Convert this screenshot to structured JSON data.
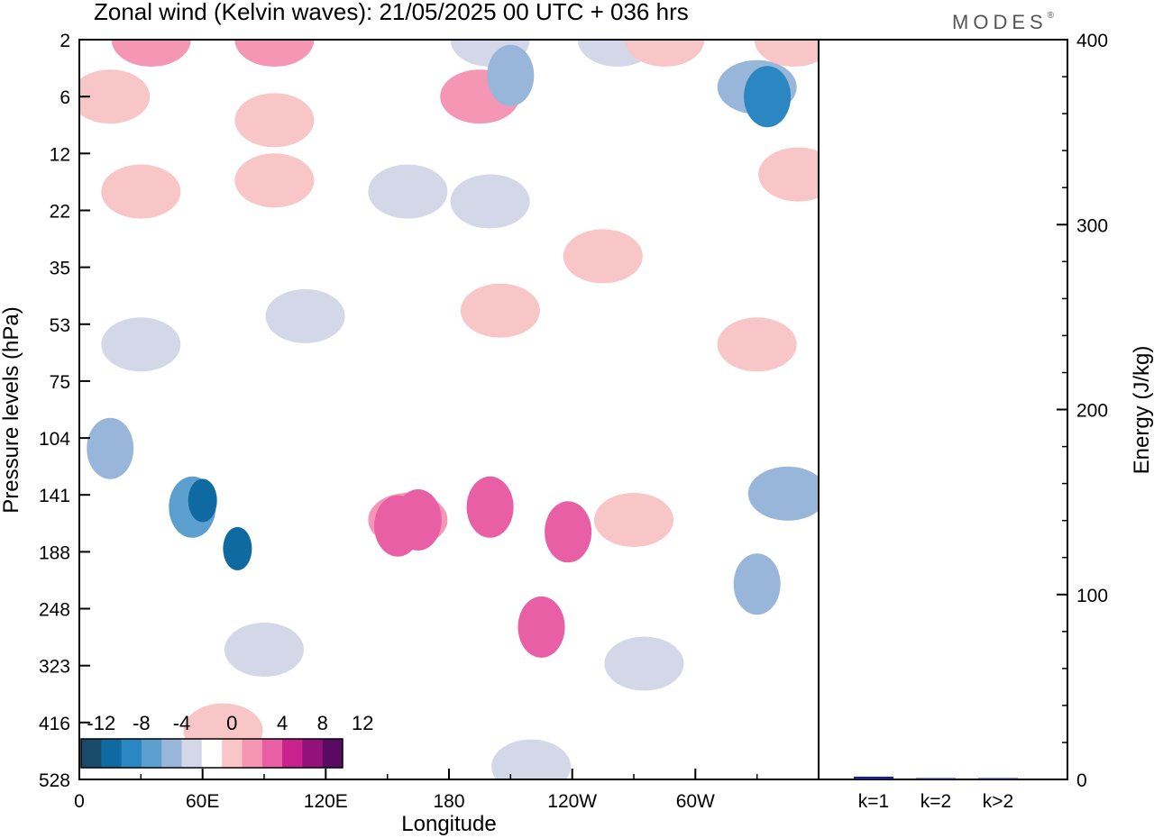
{
  "header": {
    "title": "Zonal wind (Kelvin waves):  21/05/2025  00 UTC  + 036 hrs",
    "logo": "MODES",
    "logo_mark": "®"
  },
  "chart_data": [
    {
      "type": "heatmap",
      "title": "Zonal wind (Kelvin waves):  21/05/2025  00 UTC  + 036 hrs",
      "xlabel": "Longitude",
      "ylabel": "Pressure levels (hPa)",
      "x_tick_labels": [
        "0",
        "60E",
        "120E",
        "180",
        "120W",
        "60W"
      ],
      "y_tick_labels": [
        "2",
        "6",
        "12",
        "22",
        "35",
        "53",
        "75",
        "104",
        "141",
        "188",
        "248",
        "323",
        "416",
        "528"
      ],
      "xlim": [
        0,
        360
      ],
      "colorbar": {
        "labels": [
          "-12",
          "-8",
          "-4",
          "0",
          "4",
          "8",
          "12"
        ],
        "levels": [
          -14,
          -12,
          -10,
          -8,
          -6,
          -4,
          -2,
          2,
          4,
          6,
          8,
          10,
          12,
          14
        ],
        "colors": [
          "#1a4a6b",
          "#0f6aa1",
          "#2a87c2",
          "#5b9fcf",
          "#97b6d9",
          "#d3d7e8",
          "#ffffff",
          "#f8c6c6",
          "#f596b4",
          "#e85fa6",
          "#c9228f",
          "#93117a",
          "#5a0a63"
        ]
      },
      "regions": [
        {
          "x": 15,
          "p": 6,
          "value": 3
        },
        {
          "x": 35,
          "p": 2,
          "value": 4
        },
        {
          "x": 95,
          "p": 8,
          "value": 3
        },
        {
          "x": 95,
          "p": 2,
          "value": 4
        },
        {
          "x": 195,
          "p": 6,
          "value": 4
        },
        {
          "x": 200,
          "p": 2,
          "value": -4
        },
        {
          "x": 210,
          "p": 4,
          "value": -6
        },
        {
          "x": 262,
          "p": 2,
          "value": -3
        },
        {
          "x": 285,
          "p": 2,
          "value": 3
        },
        {
          "x": 330,
          "p": 5,
          "value": -5
        },
        {
          "x": 335,
          "p": 6,
          "value": -9
        },
        {
          "x": 348,
          "p": 2,
          "value": 3
        },
        {
          "x": 350,
          "p": 15,
          "value": 3
        },
        {
          "x": 30,
          "p": 18,
          "value": 3
        },
        {
          "x": 95,
          "p": 16,
          "value": 3
        },
        {
          "x": 160,
          "p": 18,
          "value": -3
        },
        {
          "x": 200,
          "p": 20,
          "value": -3
        },
        {
          "x": 255,
          "p": 32,
          "value": 3
        },
        {
          "x": 205,
          "p": 48,
          "value": 3
        },
        {
          "x": 330,
          "p": 60,
          "value": 3
        },
        {
          "x": 30,
          "p": 60,
          "value": -3
        },
        {
          "x": 110,
          "p": 50,
          "value": -3
        },
        {
          "x": 15,
          "p": 110,
          "value": -6
        },
        {
          "x": 55,
          "p": 150,
          "value": -8
        },
        {
          "x": 60,
          "p": 145,
          "value": -12
        },
        {
          "x": 77,
          "p": 185,
          "value": -11
        },
        {
          "x": 90,
          "p": 300,
          "value": -3
        },
        {
          "x": 160,
          "p": 160,
          "value": 4
        },
        {
          "x": 155,
          "p": 165,
          "value": 7
        },
        {
          "x": 165,
          "p": 160,
          "value": 7
        },
        {
          "x": 200,
          "p": 150,
          "value": 7
        },
        {
          "x": 225,
          "p": 270,
          "value": 7
        },
        {
          "x": 238,
          "p": 170,
          "value": 6
        },
        {
          "x": 270,
          "p": 160,
          "value": 3
        },
        {
          "x": 275,
          "p": 320,
          "value": -3
        },
        {
          "x": 345,
          "p": 140,
          "value": -5
        },
        {
          "x": 330,
          "p": 220,
          "value": -6
        },
        {
          "x": 70,
          "p": 430,
          "value": 3
        },
        {
          "x": 220,
          "p": 500,
          "value": -3
        }
      ]
    },
    {
      "type": "bar",
      "ylabel": "Energy (J/kg)",
      "categories": [
        "k=1",
        "k=2",
        "k>2"
      ],
      "values": [
        1.5,
        0.4,
        0.6
      ],
      "ylim": [
        0,
        400
      ],
      "y_tick_labels": [
        "0",
        "100",
        "200",
        "300",
        "400"
      ],
      "bar_color": "#1a237e"
    }
  ]
}
